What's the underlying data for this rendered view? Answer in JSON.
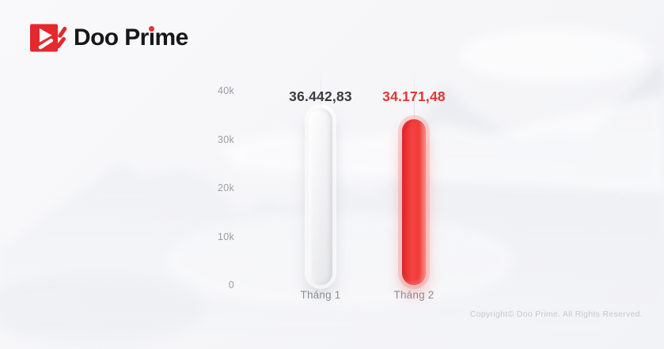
{
  "brand": {
    "name": "Doo Prime",
    "name_part1": "Doo Pr",
    "name_dotless_i": "ı",
    "name_part2": "me",
    "logo_red": "#e4282e"
  },
  "chart_data": {
    "type": "bar",
    "title": "",
    "categories": [
      "Tháng 1",
      "Tháng 2"
    ],
    "values": [
      36442.83,
      34171.48
    ],
    "value_labels": [
      "36.442,83",
      "34.171,48"
    ],
    "series_colors": [
      "#f0f0f2",
      "#ee3534"
    ],
    "value_label_colors": [
      "#3b3b40",
      "#e73331"
    ],
    "yticks": [
      {
        "label": "40k",
        "value": 40000
      },
      {
        "label": "30k",
        "value": 30000
      },
      {
        "label": "20k",
        "value": 20000
      },
      {
        "label": "10k",
        "value": 10000
      },
      {
        "label": "0",
        "value": 0
      }
    ],
    "ylim": [
      0,
      40000
    ],
    "xlabel": "",
    "ylabel": "",
    "legend": "none",
    "grid": "vertical-guide-lines-at-bars"
  },
  "footer": {
    "copyright": "Copyright© Doo Prime. All Rights Reserved."
  },
  "colors": {
    "background": "#f7f7f9",
    "accent_red": "#e73331",
    "axis_text": "#9b9ba3",
    "category_text": "#8e8e98",
    "dark_value_text": "#3b3b40"
  }
}
